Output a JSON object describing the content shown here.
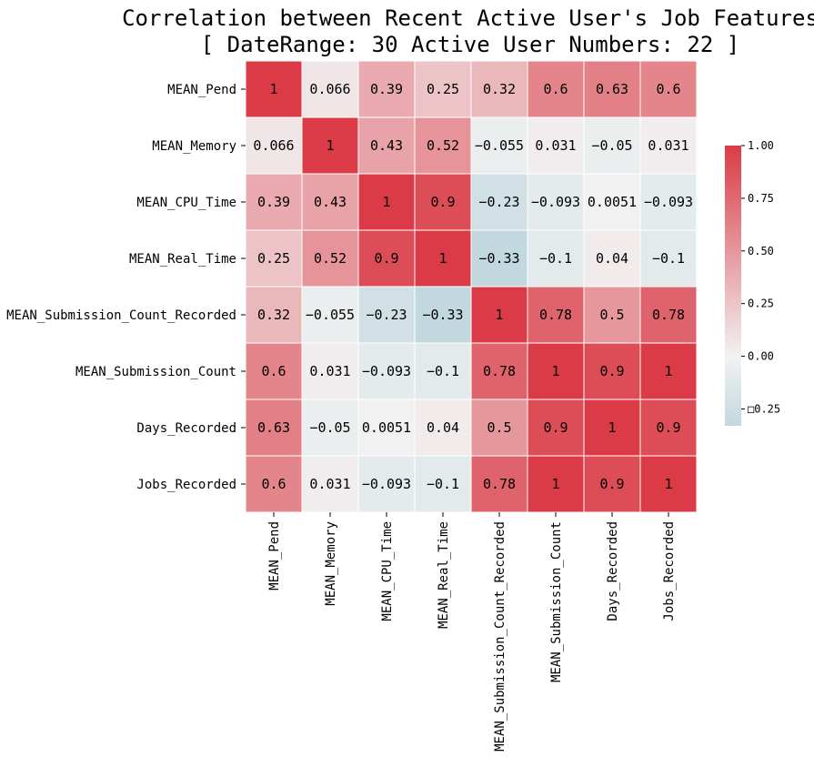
{
  "chart_data": {
    "type": "heatmap",
    "title_lines": [
      "Correlation between Recent Active User's Job Features",
      "[ DateRange: 30   Active User Numbers: 22 ]"
    ],
    "xlabel": "",
    "ylabel": "",
    "row_labels": [
      "MEAN_Pend",
      "MEAN_Memory",
      "MEAN_CPU_Time",
      "MEAN_Real_Time",
      "MEAN_Submission_Count_Recorded",
      "MEAN_Submission_Count",
      "Days_Recorded",
      "Jobs_Recorded"
    ],
    "col_labels": [
      "MEAN_Pend",
      "MEAN_Memory",
      "MEAN_CPU_Time",
      "MEAN_Real_Time",
      "MEAN_Submission_Count_Recorded",
      "MEAN_Submission_Count",
      "Days_Recorded",
      "Jobs_Recorded"
    ],
    "values": [
      [
        1,
        0.066,
        0.39,
        0.25,
        0.32,
        0.6,
        0.63,
        0.6
      ],
      [
        0.066,
        1,
        0.43,
        0.52,
        -0.055,
        0.031,
        -0.05,
        0.031
      ],
      [
        0.39,
        0.43,
        1,
        0.9,
        -0.23,
        -0.093,
        0.0051,
        -0.093
      ],
      [
        0.25,
        0.52,
        0.9,
        1,
        -0.33,
        -0.1,
        0.04,
        -0.1
      ],
      [
        0.32,
        -0.055,
        -0.23,
        -0.33,
        1,
        0.78,
        0.5,
        0.78
      ],
      [
        0.6,
        0.031,
        -0.093,
        -0.1,
        0.78,
        1,
        0.9,
        1
      ],
      [
        0.63,
        -0.05,
        0.0051,
        0.04,
        0.5,
        0.9,
        1,
        0.9
      ],
      [
        0.6,
        0.031,
        -0.093,
        -0.1,
        0.78,
        1,
        0.9,
        1
      ]
    ],
    "value_labels": [
      [
        "1",
        "0.066",
        "0.39",
        "0.25",
        "0.32",
        "0.6",
        "0.63",
        "0.6"
      ],
      [
        "0.066",
        "1",
        "0.43",
        "0.52",
        "−0.055",
        "0.031",
        "−0.05",
        "0.031"
      ],
      [
        "0.39",
        "0.43",
        "1",
        "0.9",
        "−0.23",
        "−0.093",
        "0.0051",
        "−0.093"
      ],
      [
        "0.25",
        "0.52",
        "0.9",
        "1",
        "−0.33",
        "−0.1",
        "0.04",
        "−0.1"
      ],
      [
        "0.32",
        "−0.055",
        "−0.23",
        "−0.33",
        "1",
        "0.78",
        "0.5",
        "0.78"
      ],
      [
        "0.6",
        "0.031",
        "−0.093",
        "−0.1",
        "0.78",
        "1",
        "0.9",
        "1"
      ],
      [
        "0.63",
        "−0.05",
        "0.0051",
        "0.04",
        "0.5",
        "0.9",
        "1",
        "0.9"
      ],
      [
        "0.6",
        "0.031",
        "−0.093",
        "−0.1",
        "0.78",
        "1",
        "0.9",
        "1"
      ]
    ],
    "colorbar": {
      "vmin": -0.33,
      "vmax": 1.0,
      "ticks": [
        1.0,
        0.75,
        0.5,
        0.25,
        0.0,
        -0.25
      ],
      "tick_labels": [
        "1.00",
        "0.75",
        "0.50",
        "0.25",
        "0.00",
        "□0.25"
      ]
    },
    "colors": {
      "negative": "#c2d8df",
      "zero": "#f2f2f2",
      "positive": "#da3b46",
      "cell_border": "#ffffff"
    },
    "grid": false,
    "legend": "colorbar-right"
  }
}
